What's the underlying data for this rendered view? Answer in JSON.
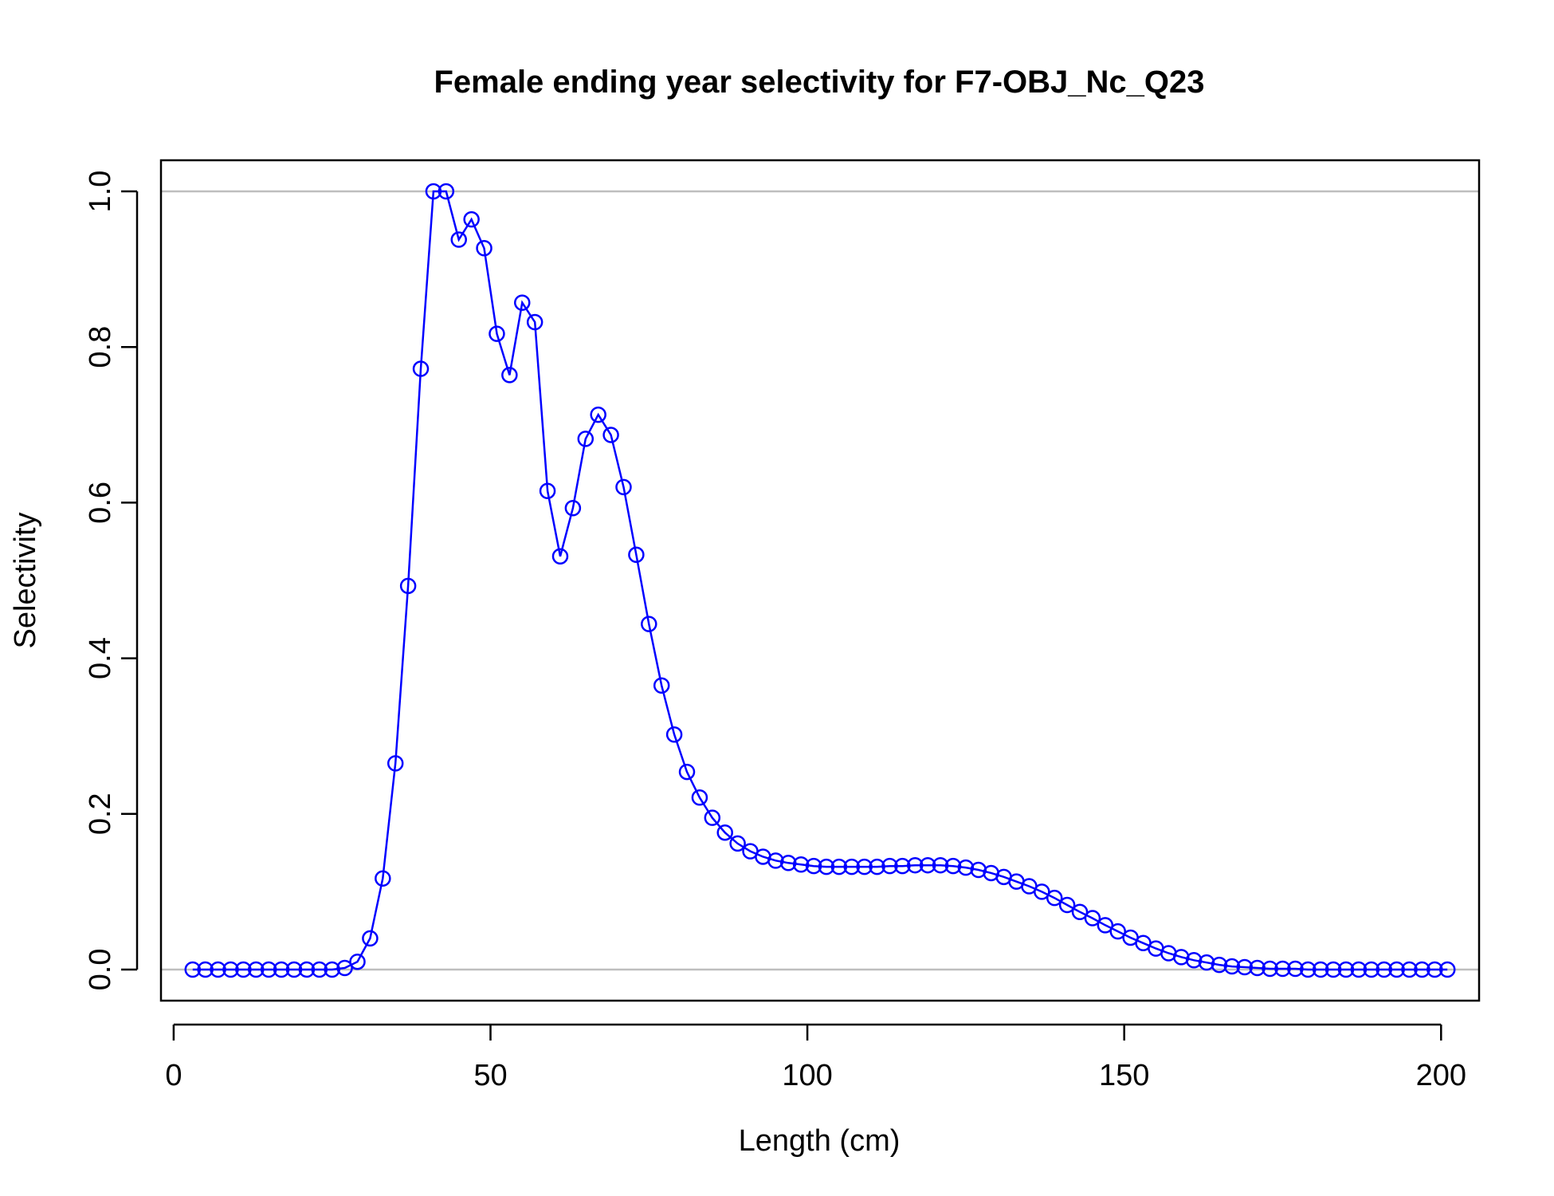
{
  "chart_data": {
    "type": "line",
    "title": "Female ending year selectivity for F7-OBJ_Nc_Q23",
    "xlabel": "Length (cm)",
    "ylabel": "Selectivity",
    "xlim": [
      -2,
      206
    ],
    "ylim": [
      -0.04,
      1.04
    ],
    "x_ticks": [
      0,
      50,
      100,
      150,
      200
    ],
    "x_tick_labels": [
      "0",
      "50",
      "100",
      "150",
      "200"
    ],
    "y_ticks": [
      0,
      0.2,
      0.4,
      0.6,
      0.8,
      1.0
    ],
    "y_tick_labels": [
      "0.0",
      "0.2",
      "0.4",
      "0.6",
      "0.8",
      "1.0"
    ],
    "reference_lines": [
      0,
      1
    ],
    "grid": false,
    "colors": {
      "series": "#0000ff",
      "reference": "#bebebe",
      "axis": "#000000"
    },
    "series": [
      {
        "marker": "open-circle",
        "x": [
          3,
          5,
          7,
          9,
          11,
          13,
          15,
          17,
          19,
          21,
          23,
          25,
          27,
          29,
          31,
          33,
          35,
          37,
          39,
          41,
          43,
          45,
          47,
          49,
          51,
          53,
          55,
          57,
          59,
          61,
          63,
          65,
          67,
          69,
          71,
          73,
          75,
          77,
          79,
          81,
          83,
          85,
          87,
          89,
          91,
          93,
          95,
          97,
          99,
          101,
          103,
          105,
          107,
          109,
          111,
          113,
          115,
          117,
          119,
          121,
          123,
          125,
          127,
          129,
          131,
          133,
          135,
          137,
          139,
          141,
          143,
          145,
          147,
          149,
          151,
          153,
          155,
          157,
          159,
          161,
          163,
          165,
          167,
          169,
          171,
          173,
          175,
          177,
          179,
          181,
          183,
          185,
          187,
          189,
          191,
          193,
          195,
          197,
          199,
          201
        ],
        "y": [
          0,
          0,
          0,
          0,
          0,
          0,
          0,
          0,
          0,
          0,
          0,
          0,
          0.002,
          0.01,
          0.04,
          0.117,
          0.265,
          0.493,
          0.772,
          1.0,
          1.0,
          0.938,
          0.964,
          0.927,
          0.817,
          0.764,
          0.857,
          0.832,
          0.615,
          0.531,
          0.593,
          0.682,
          0.713,
          0.687,
          0.62,
          0.533,
          0.444,
          0.365,
          0.302,
          0.254,
          0.221,
          0.195,
          0.176,
          0.162,
          0.152,
          0.145,
          0.14,
          0.137,
          0.135,
          0.133,
          0.132,
          0.132,
          0.132,
          0.132,
          0.132,
          0.133,
          0.133,
          0.134,
          0.134,
          0.134,
          0.133,
          0.131,
          0.128,
          0.124,
          0.119,
          0.113,
          0.107,
          0.1,
          0.092,
          0.083,
          0.074,
          0.066,
          0.057,
          0.049,
          0.041,
          0.034,
          0.027,
          0.021,
          0.016,
          0.012,
          0.009,
          0.006,
          0.004,
          0.003,
          0.002,
          0.001,
          0.001,
          0.001,
          0,
          0,
          0,
          0,
          0,
          0,
          0,
          0,
          0,
          0,
          0,
          0
        ]
      }
    ]
  }
}
